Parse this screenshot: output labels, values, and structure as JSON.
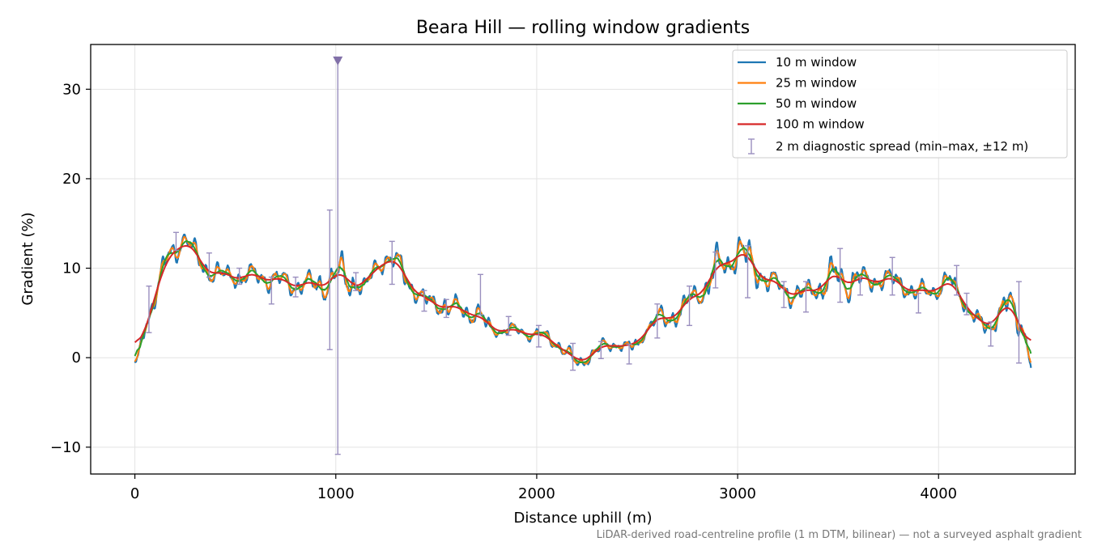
{
  "chart_data": {
    "type": "line",
    "title": "Beara Hill — rolling window gradients",
    "xlabel": "Distance uphill (m)",
    "ylabel": "Gradient (%)",
    "xlim": [
      -220,
      4680
    ],
    "ylim": [
      -13,
      35
    ],
    "xticks": [
      0,
      1000,
      2000,
      3000,
      4000
    ],
    "yticks": [
      -10,
      0,
      10,
      20,
      30
    ],
    "ytick_labels": [
      "−10",
      "0",
      "10",
      "20",
      "30"
    ],
    "grid": true,
    "legend_position": "top-right",
    "footnote": "LiDAR-derived road-centreline profile (1 m DTM, bilinear) — not a surveyed asphalt gradient",
    "profile": [
      [
        0,
        -2.3
      ],
      [
        50,
        3.5
      ],
      [
        100,
        7.0
      ],
      [
        150,
        10.5
      ],
      [
        200,
        12.0
      ],
      [
        250,
        13.5
      ],
      [
        300,
        11.5
      ],
      [
        350,
        10.0
      ],
      [
        400,
        9.5
      ],
      [
        450,
        8.8
      ],
      [
        500,
        9.2
      ],
      [
        600,
        9.0
      ],
      [
        700,
        8.8
      ],
      [
        800,
        8.3
      ],
      [
        900,
        8.0
      ],
      [
        950,
        8.8
      ],
      [
        1000,
        9.2
      ],
      [
        1050,
        8.8
      ],
      [
        1100,
        8.5
      ],
      [
        1150,
        7.6
      ],
      [
        1200,
        10.0
      ],
      [
        1250,
        11.2
      ],
      [
        1300,
        10.5
      ],
      [
        1400,
        7.5
      ],
      [
        1450,
        6.2
      ],
      [
        1500,
        6.2
      ],
      [
        1600,
        5.5
      ],
      [
        1700,
        5.0
      ],
      [
        1750,
        3.8
      ],
      [
        1800,
        3.0
      ],
      [
        1900,
        3.0
      ],
      [
        2000,
        2.6
      ],
      [
        2100,
        1.8
      ],
      [
        2150,
        0.5
      ],
      [
        2200,
        -0.7
      ],
      [
        2250,
        0.0
      ],
      [
        2300,
        0.8
      ],
      [
        2350,
        1.5
      ],
      [
        2400,
        1.6
      ],
      [
        2450,
        1.0
      ],
      [
        2500,
        1.5
      ],
      [
        2550,
        3.5
      ],
      [
        2600,
        4.0
      ],
      [
        2700,
        5.0
      ],
      [
        2800,
        7.0
      ],
      [
        2900,
        9.5
      ],
      [
        2950,
        11.0
      ],
      [
        3000,
        12.0
      ],
      [
        3050,
        11.0
      ],
      [
        3100,
        10.0
      ],
      [
        3150,
        8.5
      ],
      [
        3200,
        8.0
      ],
      [
        3300,
        7.0
      ],
      [
        3400,
        7.8
      ],
      [
        3500,
        9.2
      ],
      [
        3600,
        8.5
      ],
      [
        3700,
        8.7
      ],
      [
        3800,
        8.6
      ],
      [
        3900,
        7.0
      ],
      [
        3950,
        7.5
      ],
      [
        4000,
        8.0
      ],
      [
        4050,
        8.5
      ],
      [
        4100,
        7.5
      ],
      [
        4150,
        5.5
      ],
      [
        4200,
        3.5
      ],
      [
        4250,
        3.5
      ],
      [
        4300,
        5.0
      ],
      [
        4350,
        5.8
      ],
      [
        4400,
        4.5
      ],
      [
        4450,
        1.5
      ],
      [
        4460,
        -2.0
      ]
    ],
    "series": [
      {
        "name": "10 m window",
        "color": "#1f77b4",
        "window_m": 10
      },
      {
        "name": "25 m window",
        "color": "#ff7f0e",
        "window_m": 25
      },
      {
        "name": "50 m window",
        "color": "#2ca02c",
        "window_m": 50
      },
      {
        "name": "100 m window",
        "color": "#d62728",
        "window_m": 100
      }
    ],
    "diagnostic": {
      "name": "2 m diagnostic spread (min–max, ±12 m)",
      "color": "#9a8fbf",
      "marker_color": "#8170a8",
      "marker_x": 1010,
      "marker_y": 33.2,
      "points": [
        [
          70,
          5.5,
          2.8,
          8.0
        ],
        [
          205,
          13.0,
          12.0,
          14.0
        ],
        [
          370,
          10.2,
          9.0,
          11.7
        ],
        [
          520,
          9.0,
          8.2,
          10.0
        ],
        [
          680,
          7.8,
          6.0,
          9.0
        ],
        [
          800,
          8.0,
          6.8,
          9.0
        ],
        [
          970,
          8.7,
          0.9,
          16.5
        ],
        [
          1010,
          9.2,
          -10.8,
          33.2
        ],
        [
          1100,
          8.5,
          7.5,
          9.5
        ],
        [
          1280,
          10.5,
          8.2,
          13.0
        ],
        [
          1440,
          6.5,
          5.2,
          7.5
        ],
        [
          1550,
          5.5,
          4.5,
          6.5
        ],
        [
          1720,
          6.5,
          4.8,
          9.3
        ],
        [
          1860,
          3.5,
          2.5,
          4.6
        ],
        [
          2010,
          2.5,
          1.2,
          3.6
        ],
        [
          2180,
          0.0,
          -1.4,
          1.6
        ],
        [
          2320,
          1.0,
          -0.1,
          1.8
        ],
        [
          2460,
          0.7,
          -0.7,
          1.5
        ],
        [
          2600,
          4.2,
          2.2,
          6.0
        ],
        [
          2760,
          5.5,
          3.6,
          8.0
        ],
        [
          2890,
          9.5,
          7.8,
          11.8
        ],
        [
          3050,
          9.5,
          6.7,
          12.5
        ],
        [
          3230,
          7.0,
          5.6,
          8.5
        ],
        [
          3340,
          6.8,
          5.1,
          8.5
        ],
        [
          3510,
          9.0,
          6.2,
          12.2
        ],
        [
          3610,
          8.0,
          7.0,
          9.0
        ],
        [
          3770,
          9.0,
          7.0,
          11.2
        ],
        [
          3900,
          6.0,
          5.0,
          7.2
        ],
        [
          4090,
          8.5,
          7.0,
          10.3
        ],
        [
          4140,
          6.0,
          4.8,
          7.2
        ],
        [
          4260,
          2.8,
          1.3,
          4.0
        ],
        [
          4400,
          4.0,
          -0.6,
          8.5
        ]
      ]
    }
  }
}
